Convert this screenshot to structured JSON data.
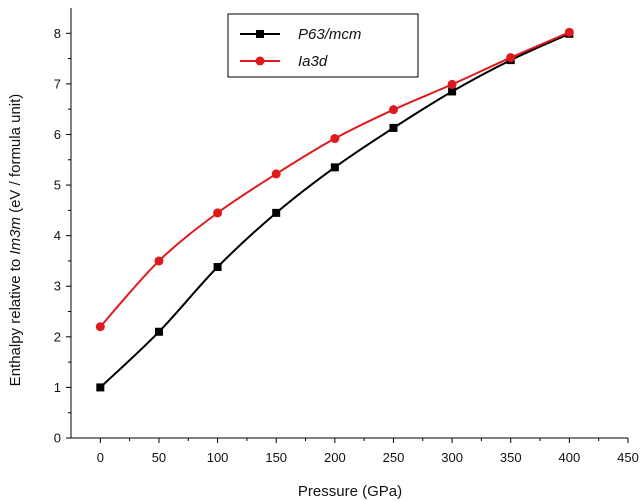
{
  "colors": {
    "axis": "#000000",
    "black_series": "#000000",
    "red_series": "#e0191c"
  },
  "chart_data": {
    "type": "line",
    "xlabel": "Pressure (GPa)",
    "ylabel": {
      "prefix": "Enthalpy relative to ",
      "italic": "Im3m",
      "suffix": " (eV / formula unit)"
    },
    "xlim": [
      -25,
      450
    ],
    "ylim": [
      0,
      8.5
    ],
    "x_ticks": [
      0,
      50,
      100,
      150,
      200,
      250,
      300,
      350,
      400,
      450
    ],
    "y_ticks": [
      0,
      1,
      2,
      3,
      4,
      5,
      6,
      7,
      8
    ],
    "legend_position": "top-center",
    "grid": false,
    "series": [
      {
        "name": "P63/mcm",
        "color": "#000000",
        "marker": "square",
        "x": [
          0,
          50,
          100,
          150,
          200,
          250,
          300,
          350,
          400
        ],
        "y": [
          1.0,
          2.1,
          3.38,
          4.45,
          5.35,
          6.13,
          6.85,
          7.47,
          7.99
        ]
      },
      {
        "name": "Ia3d",
        "color": "#e0191c",
        "marker": "circle",
        "x": [
          0,
          50,
          100,
          150,
          200,
          250,
          300,
          350,
          400
        ],
        "y": [
          2.2,
          3.5,
          4.45,
          5.22,
          5.92,
          6.49,
          6.99,
          7.52,
          8.02
        ]
      }
    ]
  }
}
